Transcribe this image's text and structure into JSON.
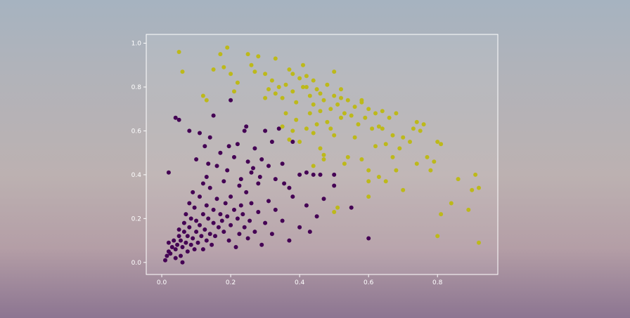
{
  "chart_data": {
    "type": "scatter",
    "title": "",
    "xlabel": "",
    "ylabel": "",
    "xlim": [
      -0.045,
      0.975
    ],
    "ylim": [
      -0.055,
      1.04
    ],
    "x_ticks": [
      0.0,
      0.2,
      0.4,
      0.6,
      0.8
    ],
    "x_tick_labels": [
      "0.0",
      "0.2",
      "0.4",
      "0.6",
      "0.8"
    ],
    "y_ticks": [
      0.0,
      0.2,
      0.4,
      0.6,
      0.8,
      1.0
    ],
    "y_tick_labels": [
      "0.0",
      "0.2",
      "0.4",
      "0.6",
      "0.8",
      "1.0"
    ],
    "grid": false,
    "legend": "none",
    "colors": {
      "class_0": "#440154",
      "class_1": "#bdb91a",
      "axes_frame": "#ffffff",
      "axes_fill": "rgba(255,255,255,0.08)"
    },
    "series": [
      {
        "color": "#440154",
        "points": [
          [
            0.01,
            0.01
          ],
          [
            0.015,
            0.03
          ],
          [
            0.02,
            0.05
          ],
          [
            0.02,
            0.09
          ],
          [
            0.025,
            0.04
          ],
          [
            0.03,
            0.07
          ],
          [
            0.035,
            0.1
          ],
          [
            0.04,
            0.02
          ],
          [
            0.04,
            0.06
          ],
          [
            0.045,
            0.08
          ],
          [
            0.05,
            0.12
          ],
          [
            0.05,
            0.15
          ],
          [
            0.055,
            0.03
          ],
          [
            0.055,
            0.1
          ],
          [
            0.06,
            0.0
          ],
          [
            0.06,
            0.07
          ],
          [
            0.065,
            0.14
          ],
          [
            0.065,
            0.18
          ],
          [
            0.07,
            0.09
          ],
          [
            0.07,
            0.22
          ],
          [
            0.075,
            0.05
          ],
          [
            0.075,
            0.12
          ],
          [
            0.08,
            0.16
          ],
          [
            0.08,
            0.27
          ],
          [
            0.085,
            0.08
          ],
          [
            0.085,
            0.2
          ],
          [
            0.09,
            0.11
          ],
          [
            0.09,
            0.32
          ],
          [
            0.095,
            0.06
          ],
          [
            0.095,
            0.25
          ],
          [
            0.1,
            0.14
          ],
          [
            0.1,
            0.19
          ],
          [
            0.105,
            0.09
          ],
          [
            0.11,
            0.17
          ],
          [
            0.11,
            0.3
          ],
          [
            0.115,
            0.12
          ],
          [
            0.12,
            0.22
          ],
          [
            0.12,
            0.06
          ],
          [
            0.125,
            0.15
          ],
          [
            0.13,
            0.26
          ],
          [
            0.13,
            0.1
          ],
          [
            0.135,
            0.2
          ],
          [
            0.14,
            0.13
          ],
          [
            0.14,
            0.34
          ],
          [
            0.145,
            0.08
          ],
          [
            0.15,
            0.18
          ],
          [
            0.15,
            0.24
          ],
          [
            0.155,
            0.12
          ],
          [
            0.16,
            0.29
          ],
          [
            0.165,
            0.16
          ],
          [
            0.17,
            0.22
          ],
          [
            0.175,
            0.19
          ],
          [
            0.18,
            0.14
          ],
          [
            0.185,
            0.27
          ],
          [
            0.19,
            0.21
          ],
          [
            0.195,
            0.1
          ],
          [
            0.2,
            0.17
          ],
          [
            0.2,
            0.3
          ],
          [
            0.21,
            0.24
          ],
          [
            0.215,
            0.07
          ],
          [
            0.22,
            0.2
          ],
          [
            0.225,
            0.13
          ],
          [
            0.23,
            0.26
          ],
          [
            0.235,
            0.22
          ],
          [
            0.24,
            0.16
          ],
          [
            0.245,
            0.32
          ],
          [
            0.25,
            0.11
          ],
          [
            0.255,
            0.19
          ],
          [
            0.26,
            0.27
          ],
          [
            0.27,
            0.14
          ],
          [
            0.28,
            0.23
          ],
          [
            0.29,
            0.08
          ],
          [
            0.3,
            0.18
          ],
          [
            0.31,
            0.28
          ],
          [
            0.32,
            0.13
          ],
          [
            0.33,
            0.24
          ],
          [
            0.35,
            0.19
          ],
          [
            0.37,
            0.1
          ],
          [
            0.38,
            0.3
          ],
          [
            0.4,
            0.16
          ],
          [
            0.42,
            0.26
          ],
          [
            0.43,
            0.14
          ],
          [
            0.45,
            0.21
          ],
          [
            0.47,
            0.29
          ],
          [
            0.5,
            0.35
          ],
          [
            0.55,
            0.25
          ],
          [
            0.6,
            0.11
          ],
          [
            0.02,
            0.41
          ],
          [
            0.04,
            0.66
          ],
          [
            0.05,
            0.65
          ],
          [
            0.08,
            0.6
          ],
          [
            0.1,
            0.47
          ],
          [
            0.12,
            0.36
          ],
          [
            0.13,
            0.39
          ],
          [
            0.14,
            0.57
          ],
          [
            0.15,
            0.67
          ],
          [
            0.16,
            0.44
          ],
          [
            0.17,
            0.5
          ],
          [
            0.18,
            0.37
          ],
          [
            0.19,
            0.42
          ],
          [
            0.2,
            0.74
          ],
          [
            0.21,
            0.48
          ],
          [
            0.22,
            0.54
          ],
          [
            0.23,
            0.38
          ],
          [
            0.24,
            0.6
          ],
          [
            0.25,
            0.46
          ],
          [
            0.26,
            0.41
          ],
          [
            0.27,
            0.52
          ],
          [
            0.28,
            0.36
          ],
          [
            0.29,
            0.47
          ],
          [
            0.3,
            0.6
          ],
          [
            0.31,
            0.44
          ],
          [
            0.32,
            0.55
          ],
          [
            0.33,
            0.38
          ],
          [
            0.34,
            0.61
          ],
          [
            0.35,
            0.45
          ],
          [
            0.37,
            0.34
          ],
          [
            0.38,
            0.55
          ],
          [
            0.4,
            0.4
          ],
          [
            0.42,
            0.41
          ],
          [
            0.44,
            0.4
          ],
          [
            0.46,
            0.4
          ],
          [
            0.5,
            0.4
          ],
          [
            0.11,
            0.59
          ],
          [
            0.125,
            0.53
          ],
          [
            0.135,
            0.45
          ],
          [
            0.225,
            0.35
          ],
          [
            0.245,
            0.62
          ],
          [
            0.265,
            0.43
          ],
          [
            0.195,
            0.53
          ],
          [
            0.355,
            0.36
          ],
          [
            0.285,
            0.39
          ]
        ]
      },
      {
        "color": "#bdb91a",
        "points": [
          [
            0.05,
            0.96
          ],
          [
            0.06,
            0.87
          ],
          [
            0.12,
            0.76
          ],
          [
            0.13,
            0.74
          ],
          [
            0.15,
            0.88
          ],
          [
            0.17,
            0.95
          ],
          [
            0.19,
            0.98
          ],
          [
            0.18,
            0.89
          ],
          [
            0.2,
            0.86
          ],
          [
            0.21,
            0.78
          ],
          [
            0.22,
            0.82
          ],
          [
            0.25,
            0.95
          ],
          [
            0.26,
            0.9
          ],
          [
            0.27,
            0.87
          ],
          [
            0.28,
            0.94
          ],
          [
            0.3,
            0.86
          ],
          [
            0.32,
            0.83
          ],
          [
            0.33,
            0.77
          ],
          [
            0.33,
            0.93
          ],
          [
            0.34,
            0.8
          ],
          [
            0.35,
            0.75
          ],
          [
            0.36,
            0.81
          ],
          [
            0.37,
            0.88
          ],
          [
            0.38,
            0.86
          ],
          [
            0.38,
            0.78
          ],
          [
            0.39,
            0.73
          ],
          [
            0.4,
            0.84
          ],
          [
            0.41,
            0.9
          ],
          [
            0.42,
            0.8
          ],
          [
            0.43,
            0.76
          ],
          [
            0.43,
            0.68
          ],
          [
            0.44,
            0.72
          ],
          [
            0.45,
            0.79
          ],
          [
            0.46,
            0.77
          ],
          [
            0.47,
            0.74
          ],
          [
            0.48,
            0.81
          ],
          [
            0.49,
            0.7
          ],
          [
            0.5,
            0.87
          ],
          [
            0.5,
            0.76
          ],
          [
            0.51,
            0.72
          ],
          [
            0.52,
            0.79
          ],
          [
            0.53,
            0.68
          ],
          [
            0.54,
            0.74
          ],
          [
            0.55,
            0.67
          ],
          [
            0.56,
            0.71
          ],
          [
            0.57,
            0.63
          ],
          [
            0.58,
            0.74
          ],
          [
            0.59,
            0.66
          ],
          [
            0.6,
            0.7
          ],
          [
            0.61,
            0.61
          ],
          [
            0.62,
            0.68
          ],
          [
            0.63,
            0.62
          ],
          [
            0.64,
            0.69
          ],
          [
            0.65,
            0.54
          ],
          [
            0.66,
            0.66
          ],
          [
            0.67,
            0.58
          ],
          [
            0.68,
            0.68
          ],
          [
            0.69,
            0.52
          ],
          [
            0.7,
            0.57
          ],
          [
            0.72,
            0.55
          ],
          [
            0.73,
            0.61
          ],
          [
            0.74,
            0.64
          ],
          [
            0.75,
            0.6
          ],
          [
            0.76,
            0.63
          ],
          [
            0.77,
            0.48
          ],
          [
            0.79,
            0.46
          ],
          [
            0.8,
            0.55
          ],
          [
            0.81,
            0.54
          ],
          [
            0.35,
            0.62
          ],
          [
            0.36,
            0.68
          ],
          [
            0.37,
            0.56
          ],
          [
            0.38,
            0.6
          ],
          [
            0.39,
            0.65
          ],
          [
            0.4,
            0.55
          ],
          [
            0.42,
            0.61
          ],
          [
            0.44,
            0.59
          ],
          [
            0.45,
            0.63
          ],
          [
            0.46,
            0.52
          ],
          [
            0.47,
            0.49
          ],
          [
            0.48,
            0.64
          ],
          [
            0.49,
            0.61
          ],
          [
            0.5,
            0.58
          ],
          [
            0.52,
            0.66
          ],
          [
            0.53,
            0.45
          ],
          [
            0.54,
            0.48
          ],
          [
            0.56,
            0.57
          ],
          [
            0.58,
            0.47
          ],
          [
            0.6,
            0.42
          ],
          [
            0.6,
            0.37
          ],
          [
            0.6,
            0.3
          ],
          [
            0.62,
            0.53
          ],
          [
            0.63,
            0.39
          ],
          [
            0.65,
            0.37
          ],
          [
            0.67,
            0.48
          ],
          [
            0.68,
            0.42
          ],
          [
            0.7,
            0.33
          ],
          [
            0.74,
            0.45
          ],
          [
            0.78,
            0.42
          ],
          [
            0.8,
            0.12
          ],
          [
            0.81,
            0.22
          ],
          [
            0.84,
            0.27
          ],
          [
            0.86,
            0.38
          ],
          [
            0.89,
            0.24
          ],
          [
            0.9,
            0.33
          ],
          [
            0.91,
            0.4
          ],
          [
            0.92,
            0.34
          ],
          [
            0.92,
            0.09
          ],
          [
            0.5,
            0.23
          ],
          [
            0.51,
            0.25
          ],
          [
            0.44,
            0.44
          ],
          [
            0.47,
            0.47
          ],
          [
            0.41,
            0.8
          ],
          [
            0.42,
            0.85
          ],
          [
            0.44,
            0.83
          ],
          [
            0.46,
            0.69
          ],
          [
            0.52,
            0.75
          ],
          [
            0.58,
            0.73
          ],
          [
            0.64,
            0.61
          ],
          [
            0.3,
            0.75
          ],
          [
            0.31,
            0.79
          ]
        ]
      }
    ]
  }
}
